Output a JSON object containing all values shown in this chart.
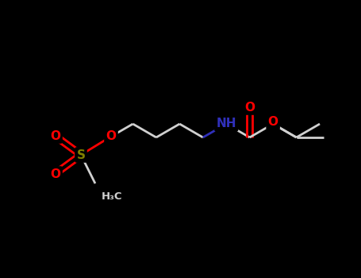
{
  "bg_color": "#000000",
  "bond_color": "#d0d0d0",
  "atom_colors": {
    "O": "#ff0000",
    "N": "#3030bb",
    "S": "#808000",
    "C": "#d0d0d0"
  },
  "figsize": [
    4.55,
    3.5
  ],
  "dpi": 100,
  "bond_lw": 2.0,
  "font_size": 11
}
